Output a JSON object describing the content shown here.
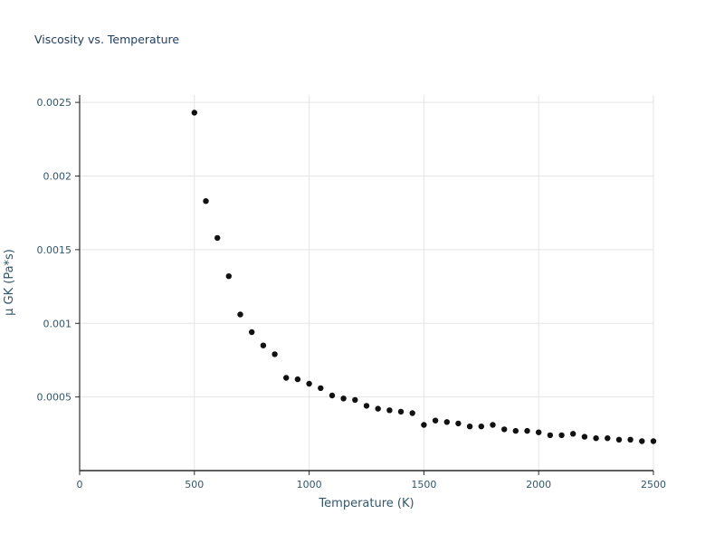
{
  "page": {
    "background_color": "#ffffff",
    "text_color": "#33576b",
    "title_color": "#1f3b5e",
    "grid_color": "#e5e5e5",
    "spine_color": "#2b2b2b",
    "marker_color": "#111111"
  },
  "chart_data": {
    "type": "scatter",
    "title": "Viscosity vs. Temperature",
    "xlabel": "Temperature (K)",
    "ylabel": "μ GK (Pa*s)",
    "xlim": [
      0,
      2500
    ],
    "ylim": [
      0,
      0.00255
    ],
    "grid": true,
    "legend": "none",
    "x": [
      500,
      550,
      600,
      650,
      700,
      750,
      800,
      850,
      900,
      950,
      1000,
      1050,
      1100,
      1150,
      1200,
      1250,
      1300,
      1350,
      1400,
      1450,
      1500,
      1550,
      1600,
      1650,
      1700,
      1750,
      1800,
      1850,
      1900,
      1950,
      2000,
      2050,
      2100,
      2150,
      2200,
      2250,
      2300,
      2350,
      2400,
      2450,
      2500
    ],
    "y": [
      0.00243,
      0.00183,
      0.00158,
      0.00132,
      0.00106,
      0.00094,
      0.00085,
      0.00079,
      0.00063,
      0.00062,
      0.00059,
      0.00056,
      0.00051,
      0.00049,
      0.00048,
      0.00044,
      0.00042,
      0.00041,
      0.0004,
      0.00039,
      0.00031,
      0.00034,
      0.00033,
      0.00032,
      0.0003,
      0.0003,
      0.00031,
      0.00028,
      0.00027,
      0.00027,
      0.00026,
      0.00024,
      0.00024,
      0.00025,
      0.00023,
      0.00022,
      0.00022,
      0.00021,
      0.00021,
      0.0002,
      0.0002
    ],
    "xticks": {
      "values": [
        0,
        500,
        1000,
        1500,
        2000,
        2500
      ],
      "labels": [
        "0",
        "500",
        "1000",
        "1500",
        "2000",
        "2500"
      ]
    },
    "yticks": {
      "values": [
        0.0005,
        0.001,
        0.0015,
        0.002,
        0.0025
      ],
      "labels": [
        "0.0005",
        "0.001",
        "0.0015",
        "0.002",
        "0.0025"
      ]
    }
  }
}
